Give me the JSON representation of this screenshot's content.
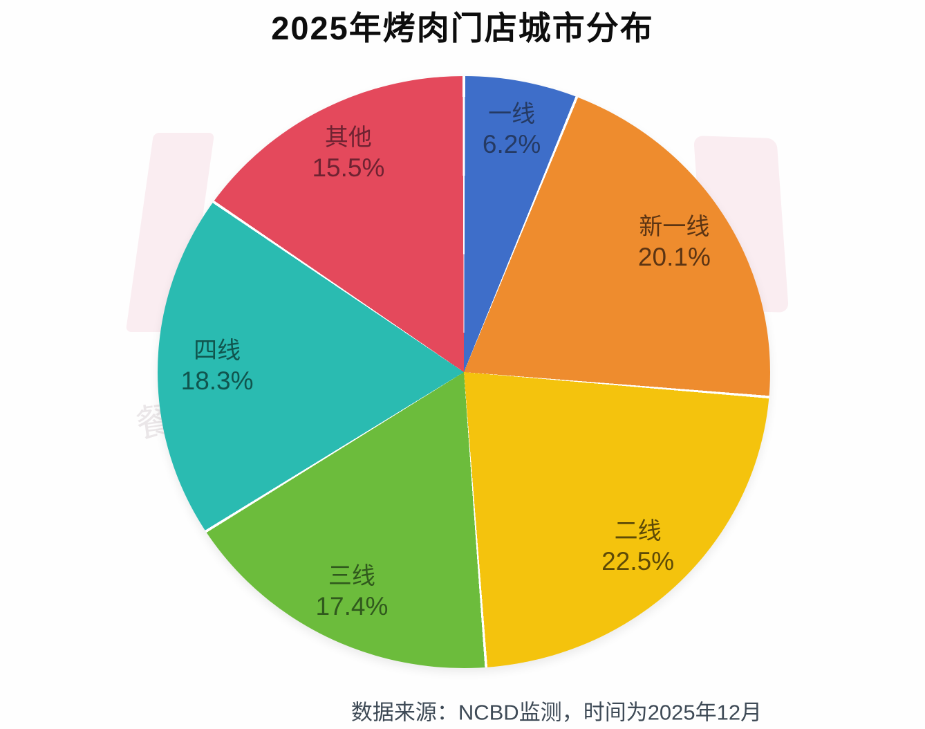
{
  "title": "2025年烤肉门店城市分布",
  "footer": {
    "source_note": "数据来源：NCBD监测，时间为2025年12月"
  },
  "watermark": {
    "left_char": "餐"
  },
  "colors": {
    "background": "#fefefe",
    "title_text": "#0d0d0d",
    "footer_text": "#3e4a56",
    "watermark_pink": "#faedf1",
    "slice_separator": "#ffffff"
  },
  "chart_data": {
    "type": "pie",
    "title": "2025年烤肉门店城市分布",
    "start_angle_deg": 0,
    "direction": "clockwise",
    "legend_position": "none",
    "labels_on_slices": true,
    "slices": [
      {
        "label": "一线",
        "value": 6.2,
        "display": "6.2%",
        "color": "#3e6ec9",
        "label_color": "#253a63"
      },
      {
        "label": "新一线",
        "value": 20.1,
        "display": "20.1%",
        "color": "#ee8c2e",
        "label_color": "#5b3413"
      },
      {
        "label": "二线",
        "value": 22.5,
        "display": "22.5%",
        "color": "#f4c30d",
        "label_color": "#5d4a07"
      },
      {
        "label": "三线",
        "value": 17.4,
        "display": "17.4%",
        "color": "#6cbc3c",
        "label_color": "#30591d"
      },
      {
        "label": "四线",
        "value": 18.3,
        "display": "18.3%",
        "color": "#2abbb1",
        "label_color": "#10554e"
      },
      {
        "label": "其他",
        "value": 15.5,
        "display": "15.5%",
        "color": "#e4495c",
        "label_color": "#6e2231"
      }
    ]
  }
}
